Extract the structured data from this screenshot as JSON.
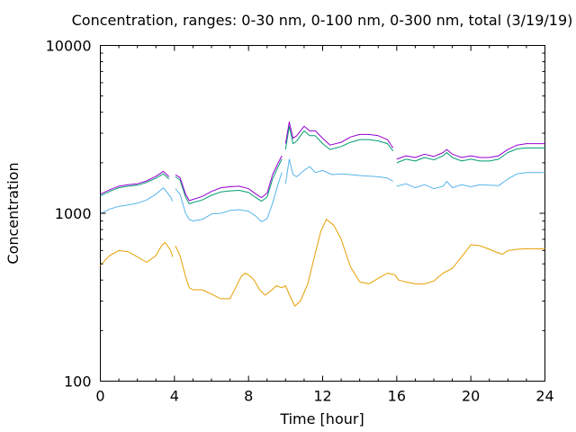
{
  "chart_data": {
    "type": "line",
    "title": "Concentration, ranges: 0-30 nm, 0-100 nm, 0-300 nm, total (3/19/19)",
    "xlabel": "Time [hour]",
    "ylabel": "Concentration",
    "xlim": [
      0,
      24
    ],
    "ylim": [
      100,
      10000
    ],
    "yscale": "log",
    "grid": false,
    "legend": "none",
    "x_ticks": [
      "0",
      "4",
      "8",
      "12",
      "16",
      "20",
      "24"
    ],
    "x_tick_values": [
      0,
      4,
      8,
      12,
      16,
      20,
      24
    ],
    "y_ticks": [
      "100",
      "1000",
      "10000"
    ],
    "y_tick_values": [
      100,
      1000,
      10000
    ],
    "series": [
      {
        "color": "#e69f00",
        "segments": [
          [
            [
              0,
              490
            ],
            [
              0.5,
              560
            ],
            [
              1,
              600
            ],
            [
              1.5,
              590
            ],
            [
              2,
              550
            ],
            [
              2.5,
              510
            ],
            [
              3,
              560
            ],
            [
              3.3,
              640
            ],
            [
              3.5,
              670
            ],
            [
              3.8,
              600
            ],
            [
              3.9,
              550
            ]
          ],
          [
            [
              4.05,
              640
            ],
            [
              4.3,
              560
            ],
            [
              4.6,
              420
            ],
            [
              4.8,
              360
            ],
            [
              5,
              350
            ],
            [
              5.5,
              350
            ],
            [
              6,
              330
            ],
            [
              6.5,
              310
            ],
            [
              7,
              310
            ],
            [
              7.3,
              360
            ],
            [
              7.6,
              420
            ],
            [
              7.8,
              440
            ],
            [
              8,
              430
            ],
            [
              8.3,
              400
            ],
            [
              8.6,
              350
            ],
            [
              8.9,
              325
            ],
            [
              9.2,
              345
            ],
            [
              9.5,
              370
            ],
            [
              9.8,
              360
            ],
            [
              10,
              370
            ],
            [
              10.3,
              310
            ],
            [
              10.5,
              280
            ],
            [
              10.8,
              300
            ],
            [
              11.2,
              380
            ],
            [
              11.5,
              520
            ],
            [
              11.9,
              780
            ],
            [
              12.2,
              920
            ],
            [
              12.6,
              850
            ],
            [
              13,
              700
            ],
            [
              13.5,
              480
            ],
            [
              14,
              390
            ],
            [
              14.5,
              380
            ],
            [
              15,
              410
            ],
            [
              15.5,
              440
            ],
            [
              15.9,
              430
            ],
            [
              16.1,
              400
            ],
            [
              16.5,
              390
            ],
            [
              17,
              380
            ],
            [
              17.5,
              380
            ],
            [
              18,
              395
            ],
            [
              18.5,
              440
            ],
            [
              19,
              470
            ],
            [
              19.5,
              550
            ],
            [
              20,
              650
            ],
            [
              20.5,
              640
            ],
            [
              21,
              610
            ],
            [
              21.5,
              580
            ],
            [
              21.7,
              570
            ],
            [
              22,
              600
            ],
            [
              22.5,
              610
            ],
            [
              23,
              615
            ],
            [
              23.5,
              615
            ],
            [
              24,
              615
            ]
          ]
        ]
      },
      {
        "color": "#56b4e9",
        "segments": [
          [
            [
              0,
              990
            ],
            [
              0.5,
              1060
            ],
            [
              1,
              1100
            ],
            [
              1.5,
              1120
            ],
            [
              2,
              1150
            ],
            [
              2.5,
              1200
            ],
            [
              3,
              1300
            ],
            [
              3.4,
              1420
            ],
            [
              3.8,
              1250
            ],
            [
              3.9,
              1180
            ]
          ],
          [
            [
              4.05,
              1400
            ],
            [
              4.3,
              1300
            ],
            [
              4.6,
              1000
            ],
            [
              4.8,
              920
            ],
            [
              5,
              900
            ],
            [
              5.5,
              920
            ],
            [
              6,
              990
            ],
            [
              6.5,
              1000
            ],
            [
              7,
              1040
            ],
            [
              7.5,
              1050
            ],
            [
              8,
              1030
            ],
            [
              8.4,
              960
            ],
            [
              8.7,
              890
            ],
            [
              9,
              930
            ],
            [
              9.3,
              1150
            ],
            [
              9.6,
              1500
            ],
            [
              9.8,
              1750
            ]
          ],
          [
            [
              10,
              1500
            ],
            [
              10.2,
              2100
            ],
            [
              10.4,
              1700
            ],
            [
              10.6,
              1650
            ],
            [
              11,
              1800
            ],
            [
              11.3,
              1900
            ],
            [
              11.6,
              1750
            ],
            [
              12,
              1800
            ],
            [
              12.5,
              1700
            ],
            [
              13,
              1720
            ],
            [
              14,
              1680
            ],
            [
              15,
              1650
            ],
            [
              15.5,
              1620
            ],
            [
              15.8,
              1550
            ]
          ],
          [
            [
              16,
              1450
            ],
            [
              16.5,
              1500
            ],
            [
              17,
              1420
            ],
            [
              17.5,
              1480
            ],
            [
              18,
              1400
            ],
            [
              18.5,
              1450
            ],
            [
              18.7,
              1550
            ],
            [
              19,
              1420
            ],
            [
              19.5,
              1480
            ],
            [
              20,
              1440
            ],
            [
              20.5,
              1480
            ],
            [
              21,
              1470
            ],
            [
              21.5,
              1460
            ],
            [
              22,
              1600
            ],
            [
              22.5,
              1720
            ],
            [
              23,
              1750
            ],
            [
              24,
              1750
            ]
          ]
        ]
      },
      {
        "color": "#009e73",
        "segments": [
          [
            [
              0,
              1270
            ],
            [
              0.5,
              1350
            ],
            [
              1,
              1420
            ],
            [
              1.5,
              1450
            ],
            [
              2,
              1470
            ],
            [
              2.5,
              1530
            ],
            [
              3,
              1620
            ],
            [
              3.4,
              1720
            ],
            [
              3.7,
              1600
            ]
          ],
          [
            [
              4.05,
              1650
            ],
            [
              4.3,
              1580
            ],
            [
              4.6,
              1250
            ],
            [
              4.8,
              1140
            ],
            [
              5,
              1160
            ],
            [
              5.5,
              1200
            ],
            [
              6,
              1280
            ],
            [
              6.5,
              1340
            ],
            [
              7,
              1360
            ],
            [
              7.5,
              1370
            ],
            [
              8,
              1330
            ],
            [
              8.4,
              1240
            ],
            [
              8.7,
              1180
            ],
            [
              9,
              1250
            ],
            [
              9.3,
              1600
            ],
            [
              9.6,
              1900
            ],
            [
              9.8,
              2100
            ]
          ],
          [
            [
              10,
              2400
            ],
            [
              10.2,
              3300
            ],
            [
              10.4,
              2600
            ],
            [
              10.6,
              2700
            ],
            [
              11,
              3100
            ],
            [
              11.3,
              2900
            ],
            [
              11.6,
              2900
            ],
            [
              12,
              2600
            ],
            [
              12.4,
              2400
            ],
            [
              13,
              2500
            ],
            [
              13.5,
              2650
            ],
            [
              14,
              2750
            ],
            [
              14.5,
              2750
            ],
            [
              15,
              2700
            ],
            [
              15.5,
              2600
            ],
            [
              15.8,
              2350
            ]
          ],
          [
            [
              16,
              2000
            ],
            [
              16.5,
              2100
            ],
            [
              17,
              2050
            ],
            [
              17.5,
              2150
            ],
            [
              18,
              2080
            ],
            [
              18.5,
              2200
            ],
            [
              18.7,
              2300
            ],
            [
              19,
              2150
            ],
            [
              19.5,
              2050
            ],
            [
              20,
              2100
            ],
            [
              20.5,
              2050
            ],
            [
              21,
              2050
            ],
            [
              21.5,
              2100
            ],
            [
              22,
              2300
            ],
            [
              22.5,
              2420
            ],
            [
              23,
              2450
            ],
            [
              24,
              2450
            ]
          ]
        ]
      },
      {
        "color": "#9400d3",
        "segments": [
          [
            [
              0,
              1300
            ],
            [
              0.5,
              1380
            ],
            [
              1,
              1450
            ],
            [
              1.5,
              1480
            ],
            [
              2,
              1500
            ],
            [
              2.5,
              1560
            ],
            [
              3,
              1660
            ],
            [
              3.4,
              1780
            ],
            [
              3.7,
              1650
            ]
          ],
          [
            [
              4.05,
              1700
            ],
            [
              4.3,
              1630
            ],
            [
              4.6,
              1300
            ],
            [
              4.8,
              1190
            ],
            [
              5,
              1210
            ],
            [
              5.5,
              1260
            ],
            [
              6,
              1350
            ],
            [
              6.5,
              1420
            ],
            [
              7,
              1440
            ],
            [
              7.5,
              1450
            ],
            [
              8,
              1400
            ],
            [
              8.4,
              1300
            ],
            [
              8.7,
              1240
            ],
            [
              9,
              1320
            ],
            [
              9.3,
              1700
            ],
            [
              9.6,
              2000
            ],
            [
              9.8,
              2200
            ]
          ],
          [
            [
              10,
              2600
            ],
            [
              10.2,
              3500
            ],
            [
              10.4,
              2800
            ],
            [
              10.6,
              2900
            ],
            [
              11,
              3300
            ],
            [
              11.3,
              3100
            ],
            [
              11.6,
              3100
            ],
            [
              12,
              2800
            ],
            [
              12.4,
              2550
            ],
            [
              13,
              2650
            ],
            [
              13.5,
              2850
            ],
            [
              14,
              2950
            ],
            [
              14.5,
              2950
            ],
            [
              15,
              2900
            ],
            [
              15.5,
              2750
            ],
            [
              15.8,
              2450
            ]
          ],
          [
            [
              16,
              2100
            ],
            [
              16.5,
              2200
            ],
            [
              17,
              2150
            ],
            [
              17.5,
              2250
            ],
            [
              18,
              2180
            ],
            [
              18.5,
              2300
            ],
            [
              18.7,
              2400
            ],
            [
              19,
              2250
            ],
            [
              19.5,
              2150
            ],
            [
              20,
              2200
            ],
            [
              20.5,
              2150
            ],
            [
              21,
              2150
            ],
            [
              21.5,
              2200
            ],
            [
              22,
              2400
            ],
            [
              22.5,
              2550
            ],
            [
              23,
              2600
            ],
            [
              24,
              2600
            ]
          ]
        ]
      }
    ]
  }
}
